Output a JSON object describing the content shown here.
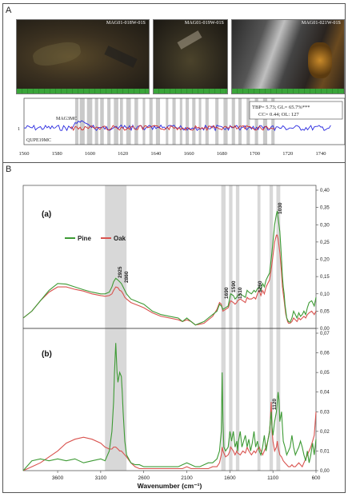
{
  "panels": {
    "A": "A",
    "B": "B"
  },
  "photos": [
    {
      "label": "MAG01-018W-01S"
    },
    {
      "label": "MAG01-019W-01S"
    },
    {
      "label": "MAG01-021W-01S"
    }
  ],
  "dendro": {
    "series_labels": [
      "MAG3MC",
      "QUPE19MC"
    ],
    "y_tick": "1",
    "x_ticks": [
      "1560",
      "1580",
      "1600",
      "1620",
      "1640",
      "1660",
      "1680",
      "1700",
      "1720",
      "1740"
    ],
    "stats_line1": "TBP= 5.73; GL= 65.7%***",
    "stats_line2": "CC= 0.44; OL: 127",
    "bands": [
      [
        1591,
        1593
      ],
      [
        1593.8,
        1596.8
      ],
      [
        1598.2,
        1601.4
      ],
      [
        1603,
        1605
      ],
      [
        1606.2,
        1608.4
      ],
      [
        1610.5,
        1612.5
      ],
      [
        1614.5,
        1617.2
      ],
      [
        1618.2,
        1620
      ],
      [
        1622,
        1624.8
      ],
      [
        1627,
        1629.2
      ],
      [
        1632,
        1633.5
      ],
      [
        1636,
        1638
      ],
      [
        1640,
        1642.5
      ],
      [
        1646,
        1647.5
      ],
      [
        1650,
        1652
      ],
      [
        1654.5,
        1656
      ],
      [
        1658,
        1660
      ],
      [
        1662,
        1664
      ],
      [
        1666,
        1667.5
      ],
      [
        1670,
        1672
      ],
      [
        1676,
        1678
      ],
      [
        1681,
        1683.5
      ],
      [
        1686,
        1688
      ],
      [
        1690,
        1692
      ],
      [
        1695,
        1697
      ],
      [
        1700,
        1702
      ],
      [
        1705,
        1707.5
      ],
      [
        1710,
        1712
      ]
    ]
  },
  "chart_data": {
    "type": "line",
    "xlabel": "Wavenumber (cm⁻¹)",
    "x_ticks": [
      "3600",
      "3100",
      "2600",
      "2100",
      "1600",
      "1100",
      "600"
    ],
    "legend": [
      "Pine",
      "Oak"
    ],
    "bands": [
      [
        2800,
        3050
      ],
      [
        1650,
        1700
      ],
      [
        1570,
        1610
      ],
      [
        1490,
        1530
      ],
      [
        1245,
        1280
      ],
      [
        1100,
        1140
      ],
      [
        1015,
        1060
      ]
    ],
    "panels": [
      {
        "label": "(a)",
        "ylim": [
          0,
          0.4
        ],
        "y_ticks": [
          "0,00",
          "0,05",
          "0,10",
          "0,15",
          "0,20",
          "0,25",
          "0,30",
          "0,35",
          "0,40"
        ],
        "annotations": [
          "2925",
          "2860",
          "1690",
          "1590",
          "1510",
          "1260",
          "1030"
        ],
        "series": [
          {
            "name": "Pine",
            "color": "#3d9a34",
            "x": [
              4000,
              3900,
              3800,
              3700,
              3600,
              3500,
              3400,
              3300,
              3200,
              3100,
              3050,
              3000,
              2970,
              2950,
              2925,
              2900,
              2880,
              2860,
              2840,
              2820,
              2800,
              2750,
              2700,
              2650,
              2600,
              2500,
              2400,
              2300,
              2200,
              2150,
              2100,
              2050,
              2000,
              1950,
              1900,
              1850,
              1800,
              1750,
              1720,
              1700,
              1690,
              1680,
              1650,
              1620,
              1600,
              1590,
              1560,
              1540,
              1520,
              1510,
              1480,
              1450,
              1420,
              1400,
              1380,
              1350,
              1320,
              1300,
              1280,
              1260,
              1240,
              1220,
              1200,
              1180,
              1160,
              1140,
              1120,
              1100,
              1080,
              1060,
              1050,
              1040,
              1030,
              1020,
              1010,
              1000,
              990,
              980,
              970,
              960,
              950,
              940,
              930,
              920,
              900,
              880,
              860,
              840,
              820,
              800,
              780,
              760,
              740,
              720,
              700,
              680,
              650,
              620,
              600
            ],
            "y": [
              0.03,
              0.05,
              0.08,
              0.11,
              0.13,
              0.128,
              0.12,
              0.112,
              0.105,
              0.1,
              0.1,
              0.105,
              0.12,
              0.135,
              0.145,
              0.14,
              0.135,
              0.13,
              0.12,
              0.11,
              0.1,
              0.085,
              0.08,
              0.075,
              0.07,
              0.05,
              0.04,
              0.035,
              0.03,
              0.02,
              0.03,
              0.02,
              0.01,
              0.015,
              0.02,
              0.03,
              0.04,
              0.05,
              0.07,
              0.065,
              0.06,
              0.055,
              0.06,
              0.065,
              0.09,
              0.1,
              0.095,
              0.085,
              0.09,
              0.095,
              0.1,
              0.095,
              0.09,
              0.11,
              0.105,
              0.1,
              0.11,
              0.105,
              0.115,
              0.12,
              0.11,
              0.13,
              0.12,
              0.14,
              0.15,
              0.16,
              0.2,
              0.25,
              0.3,
              0.33,
              0.34,
              0.32,
              0.3,
              0.28,
              0.24,
              0.2,
              0.15,
              0.12,
              0.1,
              0.07,
              0.05,
              0.03,
              0.025,
              0.02,
              0.018,
              0.03,
              0.05,
              0.04,
              0.03,
              0.045,
              0.035,
              0.04,
              0.05,
              0.04,
              0.06,
              0.075,
              0.08,
              0.065,
              0.09
            ]
          },
          {
            "name": "Oak",
            "color": "#d9534f",
            "x": [
              4000,
              3900,
              3800,
              3700,
              3600,
              3500,
              3400,
              3300,
              3200,
              3100,
              3050,
              3000,
              2970,
              2950,
              2925,
              2900,
              2880,
              2860,
              2840,
              2820,
              2800,
              2750,
              2700,
              2650,
              2600,
              2500,
              2400,
              2300,
              2200,
              2150,
              2100,
              2050,
              2000,
              1950,
              1900,
              1850,
              1800,
              1750,
              1720,
              1700,
              1690,
              1680,
              1650,
              1620,
              1600,
              1590,
              1560,
              1540,
              1520,
              1510,
              1480,
              1450,
              1420,
              1400,
              1380,
              1350,
              1320,
              1300,
              1280,
              1260,
              1240,
              1220,
              1200,
              1180,
              1160,
              1140,
              1120,
              1100,
              1080,
              1060,
              1050,
              1040,
              1030,
              1020,
              1010,
              1000,
              990,
              980,
              970,
              960,
              950,
              940,
              930,
              920,
              900,
              880,
              860,
              840,
              820,
              800,
              780,
              760,
              740,
              720,
              700,
              680,
              650,
              620,
              600
            ],
            "y": [
              0.03,
              0.05,
              0.08,
              0.105,
              0.12,
              0.12,
              0.113,
              0.108,
              0.1,
              0.095,
              0.093,
              0.095,
              0.1,
              0.11,
              0.12,
              0.118,
              0.11,
              0.108,
              0.1,
              0.09,
              0.085,
              0.075,
              0.07,
              0.065,
              0.06,
              0.045,
              0.035,
              0.03,
              0.025,
              0.02,
              0.025,
              0.02,
              0.01,
              0.012,
              0.015,
              0.025,
              0.035,
              0.055,
              0.075,
              0.07,
              0.06,
              0.05,
              0.055,
              0.06,
              0.075,
              0.08,
              0.075,
              0.07,
              0.075,
              0.08,
              0.085,
              0.08,
              0.075,
              0.09,
              0.085,
              0.085,
              0.09,
              0.085,
              0.1,
              0.11,
              0.095,
              0.11,
              0.1,
              0.12,
              0.13,
              0.14,
              0.17,
              0.21,
              0.25,
              0.27,
              0.27,
              0.26,
              0.24,
              0.22,
              0.19,
              0.16,
              0.12,
              0.1,
              0.08,
              0.06,
              0.04,
              0.03,
              0.02,
              0.015,
              0.015,
              0.02,
              0.03,
              0.025,
              0.02,
              0.03,
              0.025,
              0.03,
              0.035,
              0.03,
              0.04,
              0.045,
              0.05,
              0.04,
              0.05
            ]
          }
        ]
      },
      {
        "label": "(b)",
        "ylim": [
          0,
          0.07
        ],
        "y_ticks": [
          "0,00",
          "0,01",
          "0,02",
          "0,03",
          "0,04",
          "0,05",
          "0,06",
          "0,07"
        ],
        "annotations": [
          "1120"
        ],
        "series": [
          {
            "name": "Pine",
            "color": "#3d9a34",
            "x": [
              4000,
              3900,
              3800,
              3700,
              3600,
              3500,
              3400,
              3300,
              3200,
              3100,
              3050,
              3000,
              2970,
              2950,
              2940,
              2925,
              2910,
              2900,
              2880,
              2860,
              2850,
              2840,
              2820,
              2800,
              2750,
              2700,
              2650,
              2600,
              2500,
              2400,
              2300,
              2200,
              2150,
              2100,
              2050,
              2000,
              1950,
              1900,
              1850,
              1800,
              1750,
              1720,
              1700,
              1690,
              1680,
              1670,
              1650,
              1620,
              1600,
              1590,
              1580,
              1560,
              1540,
              1520,
              1510,
              1500,
              1480,
              1460,
              1440,
              1420,
              1400,
              1380,
              1360,
              1340,
              1320,
              1300,
              1280,
              1260,
              1240,
              1220,
              1200,
              1180,
              1160,
              1140,
              1130,
              1120,
              1110,
              1100,
              1080,
              1060,
              1050,
              1040,
              1030,
              1020,
              1000,
              980,
              960,
              940,
              920,
              900,
              880,
              860,
              840,
              820,
              800,
              780,
              760,
              740,
              720,
              700,
              680,
              660,
              640,
              620,
              600
            ],
            "y": [
              0.0,
              0.005,
              0.006,
              0.005,
              0.006,
              0.005,
              0.006,
              0.004,
              0.005,
              0.006,
              0.005,
              0.01,
              0.02,
              0.035,
              0.05,
              0.065,
              0.05,
              0.045,
              0.05,
              0.048,
              0.04,
              0.03,
              0.015,
              0.008,
              0.004,
              0.003,
              0.003,
              0.002,
              0.002,
              0.002,
              0.002,
              0.002,
              0.003,
              0.004,
              0.003,
              0.002,
              0.002,
              0.003,
              0.004,
              0.004,
              0.006,
              0.01,
              0.02,
              0.05,
              0.025,
              0.012,
              0.01,
              0.012,
              0.02,
              0.018,
              0.015,
              0.02,
              0.012,
              0.015,
              0.01,
              0.015,
              0.02,
              0.012,
              0.015,
              0.018,
              0.012,
              0.016,
              0.01,
              0.014,
              0.02,
              0.012,
              0.015,
              0.01,
              0.008,
              0.012,
              0.018,
              0.01,
              0.015,
              0.02,
              0.025,
              0.03,
              0.022,
              0.018,
              0.025,
              0.03,
              0.035,
              0.04,
              0.036,
              0.025,
              0.03,
              0.015,
              0.012,
              0.008,
              0.01,
              0.012,
              0.018,
              0.012,
              0.008,
              0.01,
              0.012,
              0.015,
              0.012,
              0.008,
              0.005,
              0.01,
              0.004,
              0.008,
              0.014,
              0.008,
              0.016
            ]
          },
          {
            "name": "Oak",
            "color": "#d9534f",
            "x": [
              4000,
              3900,
              3800,
              3700,
              3600,
              3500,
              3400,
              3300,
              3200,
              3100,
              3050,
              3000,
              2970,
              2950,
              2925,
              2900,
              2880,
              2860,
              2840,
              2820,
              2800,
              2750,
              2700,
              2650,
              2600,
              2500,
              2400,
              2300,
              2200,
              2150,
              2100,
              2050,
              2000,
              1950,
              1900,
              1850,
              1800,
              1750,
              1720,
              1700,
              1690,
              1680,
              1650,
              1620,
              1600,
              1590,
              1560,
              1540,
              1520,
              1510,
              1480,
              1450,
              1420,
              1400,
              1380,
              1350,
              1320,
              1300,
              1280,
              1260,
              1240,
              1220,
              1200,
              1180,
              1160,
              1140,
              1130,
              1120,
              1110,
              1100,
              1080,
              1060,
              1050,
              1040,
              1030,
              1020,
              1000,
              980,
              960,
              940,
              920,
              900,
              880,
              860,
              840,
              820,
              800,
              780,
              760,
              740,
              720,
              700,
              680,
              660,
              640,
              620,
              600
            ],
            "y": [
              0.0,
              0.002,
              0.004,
              0.007,
              0.01,
              0.014,
              0.016,
              0.017,
              0.016,
              0.014,
              0.012,
              0.011,
              0.011,
              0.012,
              0.012,
              0.011,
              0.01,
              0.01,
              0.009,
              0.008,
              0.007,
              0.004,
              0.002,
              0.001,
              0.001,
              0.001,
              0.001,
              0.001,
              0.001,
              0.001,
              0.002,
              0.001,
              0.001,
              0.001,
              0.001,
              0.001,
              0.002,
              0.002,
              0.004,
              0.008,
              0.012,
              0.01,
              0.007,
              0.008,
              0.01,
              0.012,
              0.01,
              0.008,
              0.01,
              0.009,
              0.008,
              0.01,
              0.009,
              0.012,
              0.01,
              0.008,
              0.01,
              0.009,
              0.011,
              0.012,
              0.01,
              0.008,
              0.01,
              0.012,
              0.015,
              0.02,
              0.025,
              0.035,
              0.02,
              0.015,
              0.01,
              0.012,
              0.015,
              0.012,
              0.01,
              0.008,
              0.007,
              0.005,
              0.004,
              0.003,
              0.002,
              0.002,
              0.003,
              0.002,
              0.002,
              0.003,
              0.004,
              0.003,
              0.002,
              0.004,
              0.006,
              0.008,
              0.01,
              0.012,
              0.015,
              0.018,
              0.03
            ]
          }
        ]
      }
    ]
  }
}
